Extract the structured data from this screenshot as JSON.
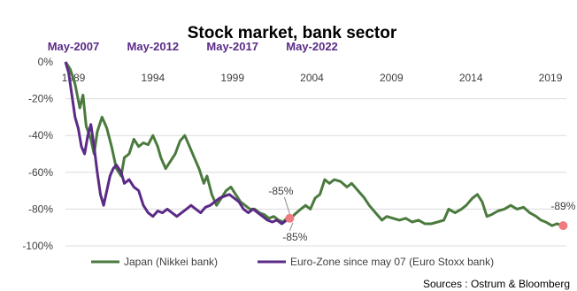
{
  "chart_data": {
    "type": "line",
    "title": "Stock market, bank sector",
    "source": "Sources : Ostrum & Bloomberg",
    "x_range": [
      1989.0,
      2020.5
    ],
    "ylim": [
      -100,
      0
    ],
    "y_ticks": [
      {
        "value": 0,
        "label": "0%"
      },
      {
        "value": -20,
        "label": "-20%"
      },
      {
        "value": -40,
        "label": "-40%"
      },
      {
        "value": -60,
        "label": "-60%"
      },
      {
        "value": -80,
        "label": "-80%"
      },
      {
        "value": -100,
        "label": "-100%"
      }
    ],
    "x_ticks_bottom": [
      {
        "value": 1989.5,
        "label": "1989"
      },
      {
        "value": 1994.5,
        "label": "1994"
      },
      {
        "value": 1999.5,
        "label": "1999"
      },
      {
        "value": 2004.5,
        "label": "2004"
      },
      {
        "value": 2009.5,
        "label": "2009"
      },
      {
        "value": 2014.5,
        "label": "2014"
      },
      {
        "value": 2019.5,
        "label": "2019"
      }
    ],
    "x_ticks_top": [
      {
        "value": 1989.5,
        "label": "May-2007"
      },
      {
        "value": 1994.5,
        "label": "May-2012"
      },
      {
        "value": 1999.5,
        "label": "May-2017"
      },
      {
        "value": 2004.5,
        "label": "May-2022"
      }
    ],
    "grid": "horizontal",
    "legend_position": "bottom",
    "series": [
      {
        "name": "Japan (Nikkei bank)",
        "color": "#4a7a3d",
        "points": [
          [
            1989.0,
            0
          ],
          [
            1989.3,
            -4
          ],
          [
            1989.6,
            -12
          ],
          [
            1989.9,
            -25
          ],
          [
            1990.1,
            -18
          ],
          [
            1990.3,
            -35
          ],
          [
            1990.6,
            -42
          ],
          [
            1990.8,
            -50
          ],
          [
            1991.0,
            -38
          ],
          [
            1991.3,
            -30
          ],
          [
            1991.6,
            -36
          ],
          [
            1991.9,
            -46
          ],
          [
            1992.2,
            -58
          ],
          [
            1992.5,
            -62
          ],
          [
            1992.7,
            -52
          ],
          [
            1993.0,
            -50
          ],
          [
            1993.3,
            -42
          ],
          [
            1993.6,
            -46
          ],
          [
            1993.9,
            -44
          ],
          [
            1994.2,
            -45
          ],
          [
            1994.5,
            -40
          ],
          [
            1994.8,
            -46
          ],
          [
            1995.0,
            -52
          ],
          [
            1995.3,
            -58
          ],
          [
            1995.6,
            -54
          ],
          [
            1995.9,
            -50
          ],
          [
            1996.2,
            -43
          ],
          [
            1996.5,
            -40
          ],
          [
            1996.8,
            -46
          ],
          [
            1997.1,
            -52
          ],
          [
            1997.4,
            -58
          ],
          [
            1997.7,
            -66
          ],
          [
            1997.9,
            -62
          ],
          [
            1998.2,
            -72
          ],
          [
            1998.5,
            -78
          ],
          [
            1998.8,
            -74
          ],
          [
            1999.1,
            -70
          ],
          [
            1999.4,
            -68
          ],
          [
            1999.7,
            -72
          ],
          [
            2000.0,
            -76
          ],
          [
            2000.3,
            -78
          ],
          [
            2000.6,
            -80
          ],
          [
            2000.9,
            -80
          ],
          [
            2001.2,
            -82
          ],
          [
            2001.5,
            -83
          ],
          [
            2001.8,
            -85
          ],
          [
            2002.1,
            -84
          ],
          [
            2002.4,
            -86
          ],
          [
            2002.7,
            -87
          ],
          [
            2002.9,
            -85
          ],
          [
            2003.1,
            -86
          ],
          [
            2003.4,
            -83
          ],
          [
            2003.8,
            -80
          ],
          [
            2004.1,
            -78
          ],
          [
            2004.4,
            -80
          ],
          [
            2004.7,
            -74
          ],
          [
            2005.0,
            -72
          ],
          [
            2005.3,
            -64
          ],
          [
            2005.6,
            -66
          ],
          [
            2005.9,
            -64
          ],
          [
            2006.3,
            -65
          ],
          [
            2006.7,
            -68
          ],
          [
            2007.0,
            -66
          ],
          [
            2007.4,
            -70
          ],
          [
            2007.8,
            -74
          ],
          [
            2008.1,
            -78
          ],
          [
            2008.5,
            -82
          ],
          [
            2008.9,
            -86
          ],
          [
            2009.2,
            -84
          ],
          [
            2009.6,
            -85
          ],
          [
            2010.0,
            -86
          ],
          [
            2010.4,
            -85
          ],
          [
            2010.8,
            -87
          ],
          [
            2011.2,
            -86
          ],
          [
            2011.6,
            -88
          ],
          [
            2012.0,
            -88
          ],
          [
            2012.4,
            -87
          ],
          [
            2012.8,
            -86
          ],
          [
            2013.1,
            -80
          ],
          [
            2013.5,
            -82
          ],
          [
            2013.9,
            -80
          ],
          [
            2014.2,
            -78
          ],
          [
            2014.6,
            -74
          ],
          [
            2014.9,
            -72
          ],
          [
            2015.2,
            -76
          ],
          [
            2015.5,
            -84
          ],
          [
            2015.8,
            -83
          ],
          [
            2016.2,
            -81
          ],
          [
            2016.6,
            -80
          ],
          [
            2017.0,
            -78
          ],
          [
            2017.4,
            -80
          ],
          [
            2017.8,
            -79
          ],
          [
            2018.2,
            -82
          ],
          [
            2018.6,
            -84
          ],
          [
            2018.9,
            -86
          ],
          [
            2019.2,
            -87
          ],
          [
            2019.6,
            -89
          ],
          [
            2019.9,
            -88
          ],
          [
            2020.3,
            -89
          ]
        ]
      },
      {
        "name": "Euro-Zone since may 07 (Euro Stoxx bank)",
        "color": "#5b2a86",
        "points": [
          [
            1989.0,
            0
          ],
          [
            1989.2,
            -6
          ],
          [
            1989.4,
            -18
          ],
          [
            1989.6,
            -30
          ],
          [
            1989.8,
            -36
          ],
          [
            1990.0,
            -46
          ],
          [
            1990.2,
            -50
          ],
          [
            1990.4,
            -40
          ],
          [
            1990.6,
            -34
          ],
          [
            1990.8,
            -46
          ],
          [
            1991.0,
            -60
          ],
          [
            1991.2,
            -72
          ],
          [
            1991.4,
            -78
          ],
          [
            1991.6,
            -70
          ],
          [
            1991.8,
            -62
          ],
          [
            1992.0,
            -58
          ],
          [
            1992.2,
            -56
          ],
          [
            1992.5,
            -60
          ],
          [
            1992.7,
            -66
          ],
          [
            1993.0,
            -64
          ],
          [
            1993.3,
            -68
          ],
          [
            1993.6,
            -70
          ],
          [
            1993.9,
            -78
          ],
          [
            1994.2,
            -82
          ],
          [
            1994.5,
            -84
          ],
          [
            1994.8,
            -81
          ],
          [
            1995.1,
            -82
          ],
          [
            1995.4,
            -80
          ],
          [
            1995.7,
            -82
          ],
          [
            1996.0,
            -84
          ],
          [
            1996.3,
            -82
          ],
          [
            1996.6,
            -80
          ],
          [
            1996.9,
            -78
          ],
          [
            1997.2,
            -80
          ],
          [
            1997.5,
            -82
          ],
          [
            1997.8,
            -79
          ],
          [
            1998.1,
            -78
          ],
          [
            1998.4,
            -76
          ],
          [
            1998.7,
            -74
          ],
          [
            1999.0,
            -73
          ],
          [
            1999.3,
            -72
          ],
          [
            1999.6,
            -74
          ],
          [
            1999.9,
            -76
          ],
          [
            2000.2,
            -80
          ],
          [
            2000.5,
            -82
          ],
          [
            2000.8,
            -80
          ],
          [
            2001.1,
            -82
          ],
          [
            2001.4,
            -84
          ],
          [
            2001.7,
            -86
          ],
          [
            2002.0,
            -87
          ],
          [
            2002.3,
            -86
          ],
          [
            2002.6,
            -88
          ],
          [
            2002.9,
            -86
          ],
          [
            2003.1,
            -85
          ]
        ]
      }
    ],
    "annotations": [
      {
        "label": "-85%",
        "series": 1,
        "x": 2003.1,
        "y": -85
      },
      {
        "label": "-85%",
        "series": 1,
        "x": 2003.1,
        "y": -85
      },
      {
        "label": "-89%",
        "series": 0,
        "x": 2020.3,
        "y": -89
      }
    ],
    "marker_color": "#f07c82"
  }
}
